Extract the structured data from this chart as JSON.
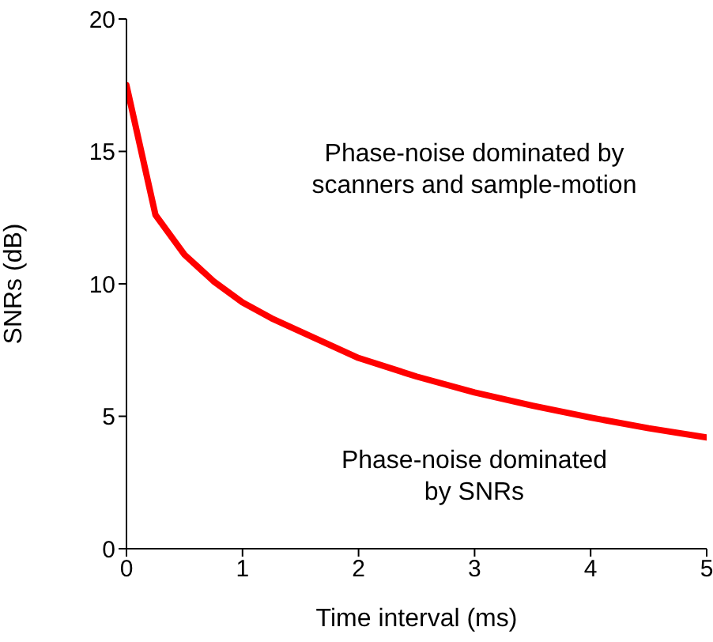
{
  "chart_data": {
    "type": "line",
    "xlabel": "Time interval (ms)",
    "ylabel": "SNRs (dB)",
    "x": [
      0,
      0.25,
      0.5,
      0.75,
      1,
      1.25,
      1.5,
      1.75,
      2,
      2.5,
      3,
      3.5,
      4,
      4.5,
      5
    ],
    "series": [
      {
        "color": "#ff0000",
        "values": [
          17.5,
          12.6,
          11.1,
          10.1,
          9.3,
          8.7,
          8.2,
          7.7,
          7.2,
          6.5,
          5.9,
          5.4,
          4.95,
          4.55,
          4.2
        ]
      }
    ],
    "xlim": [
      0,
      5
    ],
    "xticks": [
      0,
      1,
      2,
      3,
      4,
      5
    ],
    "ylim": [
      0,
      20
    ],
    "yticks": [
      0,
      5,
      10,
      15,
      20
    ],
    "grid": false,
    "legend": false,
    "annotations": [
      "Phase-noise dominated by\nscanners and sample-motion",
      "Phase-noise dominated\nby SNRs"
    ]
  }
}
